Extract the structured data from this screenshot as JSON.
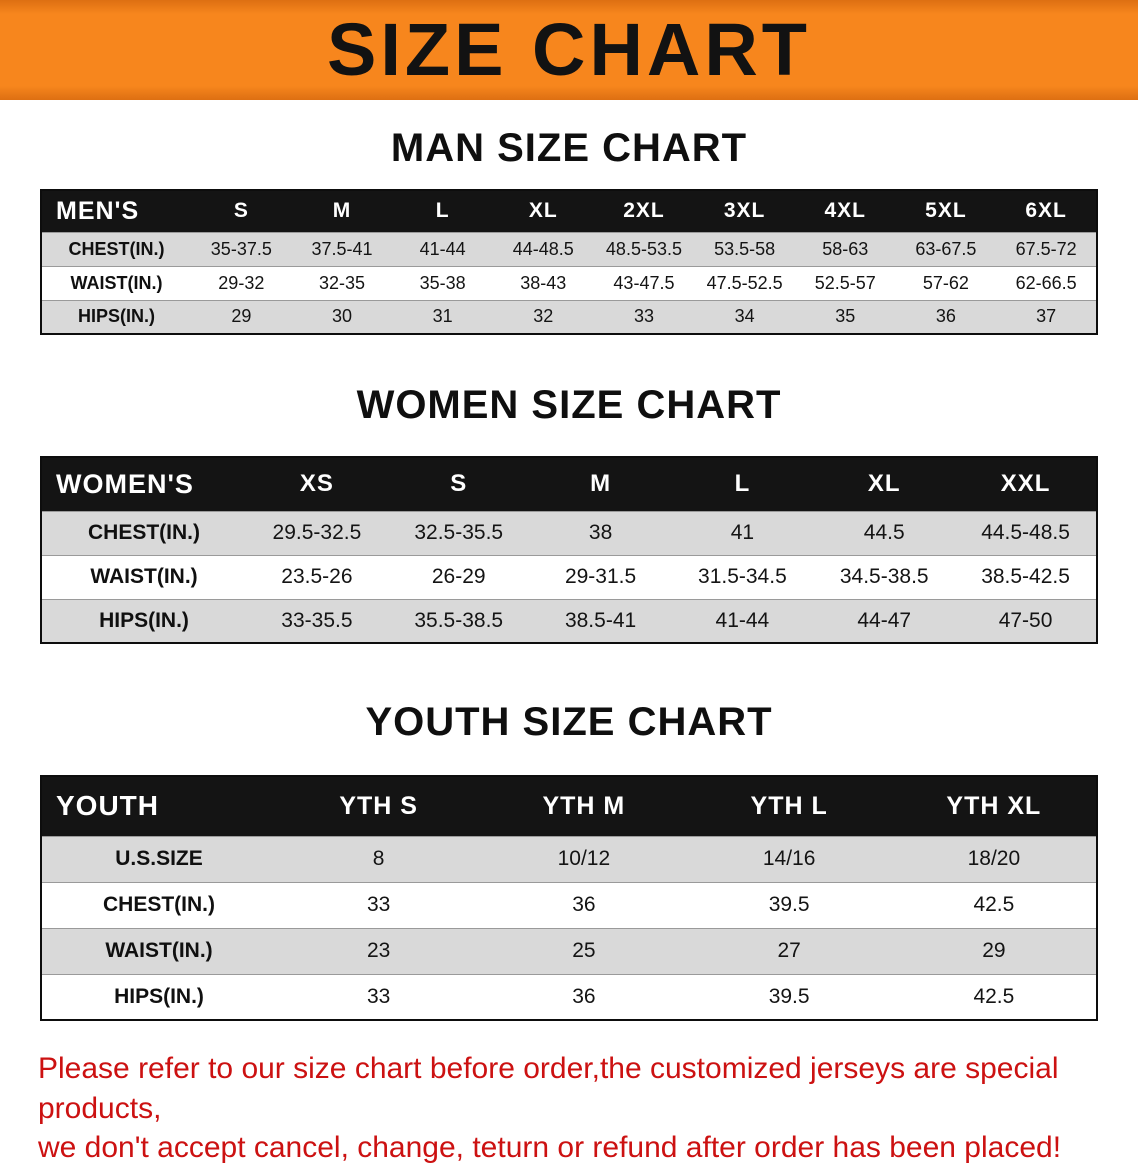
{
  "colors": {
    "banner_bg": "#f7861d",
    "table_header_bg": "#141414",
    "stripe_gray": "#d9d9d9",
    "disclaimer_red": "#cc1111",
    "title_text": "#121212"
  },
  "banner": {
    "title": "SIZE CHART"
  },
  "sections": [
    {
      "id": "men",
      "heading": "MAN SIZE CHART",
      "table": {
        "header": [
          "MEN'S",
          "S",
          "M",
          "L",
          "XL",
          "2XL",
          "3XL",
          "4XL",
          "5XL",
          "6XL"
        ],
        "rows": [
          {
            "label": "CHEST(IN.)",
            "values": [
              "35-37.5",
              "37.5-41",
              "41-44",
              "44-48.5",
              "48.5-53.5",
              "53.5-58",
              "58-63",
              "63-67.5",
              "67.5-72"
            ]
          },
          {
            "label": "WAIST(IN.)",
            "values": [
              "29-32",
              "32-35",
              "35-38",
              "38-43",
              "43-47.5",
              "47.5-52.5",
              "52.5-57",
              "57-62",
              "62-66.5"
            ]
          },
          {
            "label": "HIPS(IN.)",
            "values": [
              "29",
              "30",
              "31",
              "32",
              "33",
              "34",
              "35",
              "36",
              "37"
            ]
          }
        ]
      }
    },
    {
      "id": "women",
      "heading": "WOMEN SIZE CHART",
      "table": {
        "header": [
          "WOMEN'S",
          "XS",
          "S",
          "M",
          "L",
          "XL",
          "XXL"
        ],
        "rows": [
          {
            "label": "CHEST(IN.)",
            "values": [
              "29.5-32.5",
              "32.5-35.5",
              "38",
              "41",
              "44.5",
              "44.5-48.5"
            ]
          },
          {
            "label": "WAIST(IN.)",
            "values": [
              "23.5-26",
              "26-29",
              "29-31.5",
              "31.5-34.5",
              "34.5-38.5",
              "38.5-42.5"
            ]
          },
          {
            "label": "HIPS(IN.)",
            "values": [
              "33-35.5",
              "35.5-38.5",
              "38.5-41",
              "41-44",
              "44-47",
              "47-50"
            ]
          }
        ]
      }
    },
    {
      "id": "youth",
      "heading": "YOUTH SIZE CHART",
      "table": {
        "header": [
          "YOUTH",
          "YTH S",
          "YTH M",
          "YTH L",
          "YTH XL"
        ],
        "rows": [
          {
            "label": "U.S.SIZE",
            "values": [
              "8",
              "10/12",
              "14/16",
              "18/20"
            ]
          },
          {
            "label": "CHEST(IN.)",
            "values": [
              "33",
              "36",
              "39.5",
              "42.5"
            ]
          },
          {
            "label": "WAIST(IN.)",
            "values": [
              "23",
              "25",
              "27",
              "29"
            ]
          },
          {
            "label": "HIPS(IN.)",
            "values": [
              "33",
              "36",
              "39.5",
              "42.5"
            ]
          }
        ]
      }
    }
  ],
  "disclaimer": {
    "line1": "Please refer to our size chart before order,the customized jerseys are special products,",
    "line2": "we don't accept cancel, change, teturn or refund after order has been placed!"
  }
}
